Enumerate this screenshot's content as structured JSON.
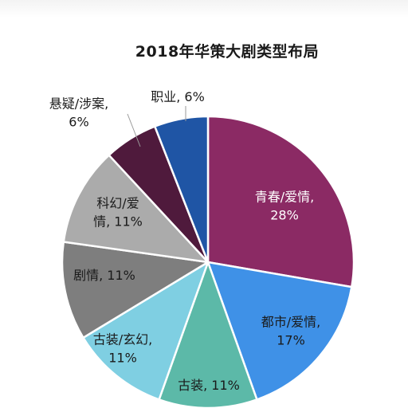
{
  "chart_data": {
    "type": "pie",
    "title": "2018年华策大剧类型布局",
    "slices": [
      {
        "label": "青春/爱情",
        "value": 28,
        "value_text": "28%",
        "color": "#8b2a64",
        "label_color": "#ffffff",
        "label_lines": [
          "青春/爱情,",
          "28%"
        ]
      },
      {
        "label": "都市/爱情",
        "value": 17,
        "value_text": "17%",
        "color": "#3f91e7",
        "label_color": "#1a1a1a",
        "label_lines": [
          "都市/爱情,",
          "17%"
        ]
      },
      {
        "label": "古装",
        "value": 11,
        "value_text": "11%",
        "color": "#5cb9a8",
        "label_color": "#1a1a1a",
        "label_lines": [
          "古装, 11%"
        ]
      },
      {
        "label": "古装/玄幻",
        "value": 11,
        "value_text": "11%",
        "color": "#7fcfe2",
        "label_color": "#1a1a1a",
        "label_lines": [
          "古装/玄幻,",
          "11%"
        ]
      },
      {
        "label": "剧情",
        "value": 11,
        "value_text": "11%",
        "color": "#7e7e7e",
        "label_color": "#1a1a1a",
        "label_lines": [
          "剧情, 11%"
        ]
      },
      {
        "label": "科幻/爱情",
        "value": 11,
        "value_text": "11%",
        "color": "#ababab",
        "label_color": "#1a1a1a",
        "label_lines": [
          "科幻/爱",
          "情, 11%"
        ]
      },
      {
        "label": "悬疑/涉案",
        "value": 6,
        "value_text": "6%",
        "color": "#4f1a3c",
        "label_color": "#1a1a1a",
        "label_lines": [
          "悬疑/涉案,",
          "6%"
        ]
      },
      {
        "label": "职业",
        "value": 6,
        "value_text": "6%",
        "color": "#1f55a5",
        "label_color": "#1a1a1a",
        "label_lines": [
          "职业, 6%"
        ]
      }
    ],
    "legend": "none"
  }
}
